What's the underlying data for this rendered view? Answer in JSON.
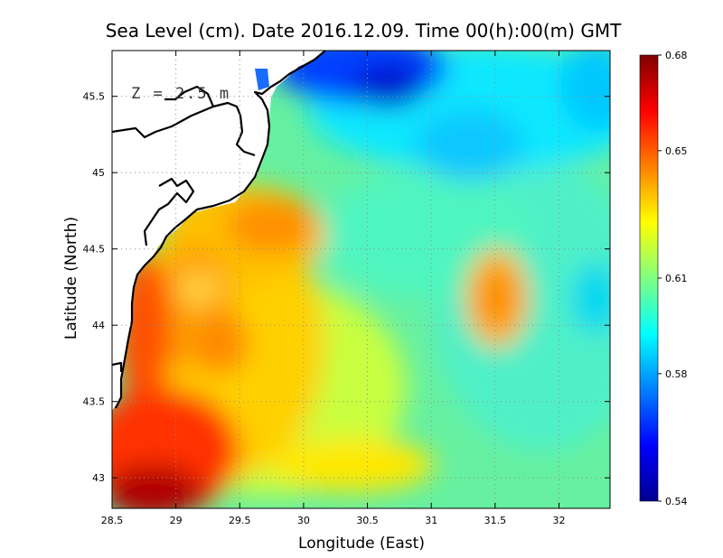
{
  "chart_data": {
    "type": "heatmap",
    "title": "Sea Level (cm). Date 2016.12.09. Time 00(h):00(m) GMT",
    "xlabel": "Longitude (East)",
    "ylabel": "Latitude (North)",
    "annotation": "Z = 2.5 m",
    "xlim": [
      28.5,
      32.4
    ],
    "ylim": [
      42.8,
      45.8
    ],
    "x_ticks": [
      28.5,
      29,
      29.5,
      30,
      30.5,
      31,
      31.5,
      32
    ],
    "x_tick_labels": [
      "28.5",
      "29",
      "29.5",
      "30",
      "30.5",
      "31",
      "31.5",
      "32"
    ],
    "y_ticks": [
      43,
      43.5,
      44,
      44.5,
      45,
      45.5
    ],
    "y_tick_labels": [
      "43",
      "43.5",
      "44",
      "44.5",
      "45",
      "45.5"
    ],
    "grid": true,
    "colorbar": {
      "min": 0.54,
      "max": 0.68,
      "ticks": [
        0.54,
        0.58,
        0.61,
        0.65,
        0.68
      ],
      "tick_labels": [
        "0.54",
        "0.58",
        "0.61",
        "0.65",
        "0.68"
      ],
      "colormap": "jet",
      "colors": [
        "#00008f",
        "#0000ff",
        "#0080ff",
        "#00ffff",
        "#80ff80",
        "#ffff00",
        "#ff8000",
        "#ff0000",
        "#800000"
      ]
    },
    "land_color": "#ffffff",
    "coastline_color": "#000000"
  }
}
